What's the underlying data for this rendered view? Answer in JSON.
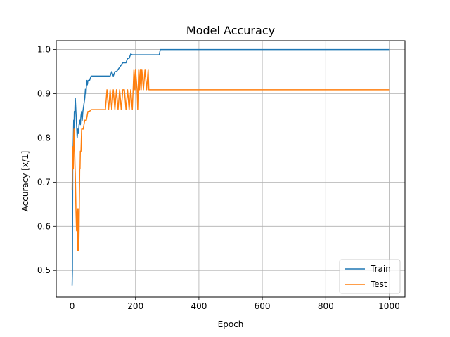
{
  "chart_data": {
    "type": "line",
    "title": "Model Accuracy",
    "xlabel": "Epoch",
    "ylabel": "Accuracy [x/1]",
    "xlim": [
      -50,
      1050
    ],
    "ylim": [
      0.44,
      1.02
    ],
    "xticks": [
      0,
      200,
      400,
      600,
      800,
      1000
    ],
    "xtick_labels": [
      "0",
      "200",
      "400",
      "600",
      "800",
      "1000"
    ],
    "yticks": [
      0.5,
      0.6,
      0.7,
      0.8,
      0.9,
      1.0
    ],
    "ytick_labels": [
      "0.5",
      "0.6",
      "0.7",
      "0.8",
      "0.9",
      "1.0"
    ],
    "grid": true,
    "legend_position": "lower right",
    "series": [
      {
        "name": "Train",
        "color": "#1f77b4",
        "x": [
          0,
          1,
          2,
          3,
          4,
          5,
          6,
          7,
          8,
          9,
          10,
          12,
          14,
          16,
          18,
          20,
          22,
          24,
          26,
          28,
          30,
          32,
          34,
          36,
          38,
          40,
          42,
          44,
          46,
          48,
          50,
          55,
          60,
          65,
          70,
          80,
          90,
          100,
          110,
          120,
          125,
          130,
          135,
          140,
          150,
          160,
          170,
          175,
          180,
          185,
          190,
          200,
          220,
          240,
          260,
          275,
          278,
          300,
          400,
          500,
          600,
          700,
          800,
          900,
          1000
        ],
        "y": [
          0.466,
          0.5,
          0.74,
          0.77,
          0.8,
          0.84,
          0.82,
          0.86,
          0.84,
          0.87,
          0.89,
          0.86,
          0.83,
          0.8,
          0.82,
          0.81,
          0.83,
          0.84,
          0.83,
          0.85,
          0.86,
          0.84,
          0.86,
          0.87,
          0.88,
          0.89,
          0.91,
          0.9,
          0.93,
          0.92,
          0.93,
          0.93,
          0.94,
          0.94,
          0.94,
          0.94,
          0.94,
          0.94,
          0.94,
          0.94,
          0.95,
          0.94,
          0.95,
          0.95,
          0.96,
          0.97,
          0.97,
          0.98,
          0.98,
          0.99,
          0.988,
          0.988,
          0.988,
          0.988,
          0.988,
          0.988,
          1.0,
          1.0,
          1.0,
          1.0,
          1.0,
          1.0,
          1.0,
          1.0,
          1.0
        ]
      },
      {
        "name": "Test",
        "color": "#ff7f0e",
        "x": [
          0,
          1,
          2,
          3,
          4,
          5,
          6,
          7,
          8,
          9,
          10,
          12,
          14,
          16,
          17,
          18,
          19,
          20,
          21,
          22,
          24,
          25,
          26,
          28,
          30,
          35,
          40,
          45,
          50,
          55,
          60,
          65,
          70,
          80,
          90,
          100,
          105,
          110,
          115,
          120,
          125,
          130,
          135,
          140,
          145,
          150,
          155,
          160,
          165,
          170,
          175,
          180,
          185,
          190,
          195,
          198,
          200,
          205,
          207,
          210,
          213,
          215,
          218,
          220,
          225,
          230,
          235,
          240,
          242,
          245,
          260,
          300,
          400,
          500,
          600,
          700,
          800,
          900,
          1000
        ],
        "y": [
          0.682,
          0.73,
          0.78,
          0.77,
          0.73,
          0.8,
          0.82,
          0.78,
          0.77,
          0.74,
          0.72,
          0.64,
          0.59,
          0.64,
          0.55,
          0.545,
          0.64,
          0.6,
          0.545,
          0.59,
          0.73,
          0.73,
          0.77,
          0.77,
          0.82,
          0.82,
          0.84,
          0.84,
          0.86,
          0.86,
          0.864,
          0.864,
          0.864,
          0.864,
          0.864,
          0.864,
          0.864,
          0.909,
          0.864,
          0.909,
          0.864,
          0.909,
          0.864,
          0.909,
          0.864,
          0.909,
          0.864,
          0.909,
          0.909,
          0.864,
          0.909,
          0.864,
          0.909,
          0.864,
          0.955,
          0.909,
          0.955,
          0.909,
          0.864,
          0.955,
          0.909,
          0.955,
          0.909,
          0.955,
          0.909,
          0.955,
          0.909,
          0.955,
          0.909,
          0.909,
          0.909,
          0.909,
          0.909,
          0.909,
          0.909,
          0.909,
          0.909,
          0.909,
          0.909
        ]
      }
    ]
  }
}
